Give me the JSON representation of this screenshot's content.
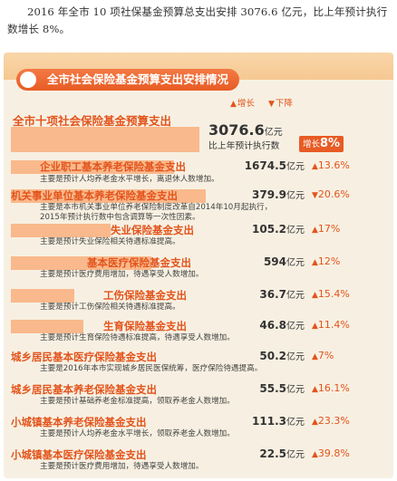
{
  "intro": "2016 年全市 10 项社保基金预算总支出安排 3076.6 亿元，比上年预计执行数增长 8%。",
  "panel": {
    "title": "全市社会保险基金预算支出安排情况",
    "legend": {
      "up": "增长",
      "down": "下降"
    },
    "total": {
      "label": "全市十项社会保险基金预算支出",
      "value": "3076.6",
      "unit": "亿元",
      "sub": "比上年预计执行数",
      "change_label": "增长",
      "change": "8%"
    },
    "items": [
      {
        "name": "企业职工基本养老保险基金支出",
        "note": "主要是预计人均养老金水平增长，离退休人数增加。",
        "value": "1674.5",
        "unit": "亿元",
        "change": "13.6%",
        "direction": "up"
      },
      {
        "name": "机关事业单位基本养老保险基金支出",
        "note": "主要是本市机关事业单位养老保险制度改革自2014年10月起执行，\n2015年预计执行数中包含调算等一次性因素。",
        "value": "379.9",
        "unit": "亿元",
        "change": "20.6%",
        "direction": "down"
      },
      {
        "name": "失业保险基金支出",
        "note": "主要是预计失业保险相关待遇标准提高。",
        "value": "105.2",
        "unit": "亿元",
        "change": "17%",
        "direction": "up"
      },
      {
        "name": "基本医疗保险基金支出",
        "note": "主要是预计医疗费用增加，待遇享受人数增加。",
        "value": "594",
        "unit": "亿元",
        "change": "12%",
        "direction": "up"
      },
      {
        "name": "工伤保险基金支出",
        "note": "主要是预计工伤保险相关待遇标准提高。",
        "value": "36.7",
        "unit": "亿元",
        "change": "15.4%",
        "direction": "up"
      },
      {
        "name": "生育保险基金支出",
        "note": "主要是预计生育保险待遇标准提高，待遇享受人数增加。",
        "value": "46.8",
        "unit": "亿元",
        "change": "11.4%",
        "direction": "up"
      },
      {
        "name": "城乡居民基本医疗保险基金支出",
        "note": "主要是2016年本市实现城乡居民医保统筹，医疗保险待遇提高。",
        "value": "50.2",
        "unit": "亿元",
        "change": "7%",
        "direction": "up"
      },
      {
        "name": "城乡居民基本养老保险基金支出",
        "note": "主要是预计基础养老金标准提高，领取养老金人数增加。",
        "value": "55.5",
        "unit": "亿元",
        "change": "16.1%",
        "direction": "up"
      },
      {
        "name": "小城镇基本养老保险基金支出",
        "note": "主要是预计人均养老金水平增长，领取养老金人数增加。",
        "value": "111.3",
        "unit": "亿元",
        "change": "23.3%",
        "direction": "up"
      },
      {
        "name": "小城镇基本医疗保险基金支出",
        "note": "主要是预计医疗费用增加，待遇享受人数增加。",
        "value": "22.5",
        "unit": "亿元",
        "change": "39.8%",
        "direction": "up"
      }
    ],
    "colors": {
      "accent": "#e3541c",
      "bar": "#f9b98c",
      "panel_bg": "#f7f0e2",
      "up": "#e3541c",
      "down": "#e3541c"
    }
  }
}
